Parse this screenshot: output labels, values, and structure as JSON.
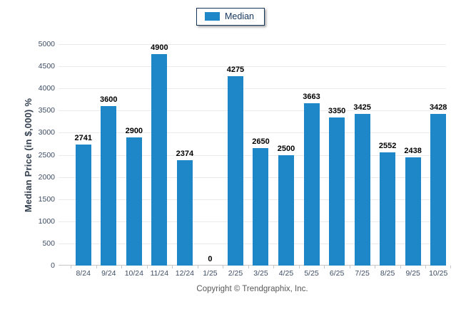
{
  "legend": {
    "items": [
      {
        "label": "Median",
        "color": "#1E87C8"
      }
    ],
    "position": "top-center"
  },
  "chart_data": {
    "type": "bar",
    "title": "",
    "categories": [
      "8/24",
      "9/24",
      "10/24",
      "11/24",
      "12/24",
      "1/25",
      "2/25",
      "3/25",
      "4/25",
      "5/25",
      "6/25",
      "7/25",
      "8/25",
      "9/25",
      "10/25"
    ],
    "values": [
      2741,
      3600,
      2900,
      4900,
      2374,
      0,
      4275,
      2650,
      2500,
      3663,
      3350,
      3425,
      2552,
      2438,
      3428
    ],
    "series_name": "Median",
    "xlabel": "",
    "ylabel": "Median Price (in $,000) %",
    "ylim": [
      0,
      5000
    ],
    "ytick_step": 500,
    "grid": true,
    "data_labels": true,
    "bar_color": "#1E87C8",
    "legend_position": "top-center"
  },
  "colors": {
    "bar": "#1E87C8",
    "gridline": "#EAEAEA",
    "axis_line": "#C6C6C6",
    "tick_text": "#3D4C63",
    "data_label_text": "#000000",
    "legend_border": "#17375E",
    "axis_title_text": "#34404F",
    "footer_text": "#595959",
    "background": "#FFFFFF"
  },
  "footer": {
    "copyright": "Copyright © Trendgraphix, Inc."
  }
}
